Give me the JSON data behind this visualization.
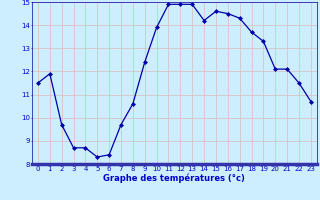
{
  "x": [
    0,
    1,
    2,
    3,
    4,
    5,
    6,
    7,
    8,
    9,
    10,
    11,
    12,
    13,
    14,
    15,
    16,
    17,
    18,
    19,
    20,
    21,
    22,
    23
  ],
  "y": [
    11.5,
    11.9,
    9.7,
    8.7,
    8.7,
    8.3,
    8.4,
    9.7,
    10.6,
    12.4,
    13.9,
    14.9,
    14.9,
    14.9,
    14.2,
    14.6,
    14.5,
    14.3,
    13.7,
    13.3,
    12.1,
    12.1,
    11.5,
    10.7
  ],
  "xlabel": "Graphe des températures (°c)",
  "xlim": [
    -0.5,
    23.5
  ],
  "ylim": [
    8,
    15
  ],
  "yticks": [
    8,
    9,
    10,
    11,
    12,
    13,
    14,
    15
  ],
  "xticks": [
    0,
    1,
    2,
    3,
    4,
    5,
    6,
    7,
    8,
    9,
    10,
    11,
    12,
    13,
    14,
    15,
    16,
    17,
    18,
    19,
    20,
    21,
    22,
    23
  ],
  "line_color": "#0000aa",
  "marker": "D",
  "marker_size": 2.0,
  "bg_color": "#cceeff",
  "grid_color": "#ddbbbb",
  "label_color": "#0000cc",
  "axis_label_color": "#0000cc",
  "bottom_bar_color": "#3333aa"
}
